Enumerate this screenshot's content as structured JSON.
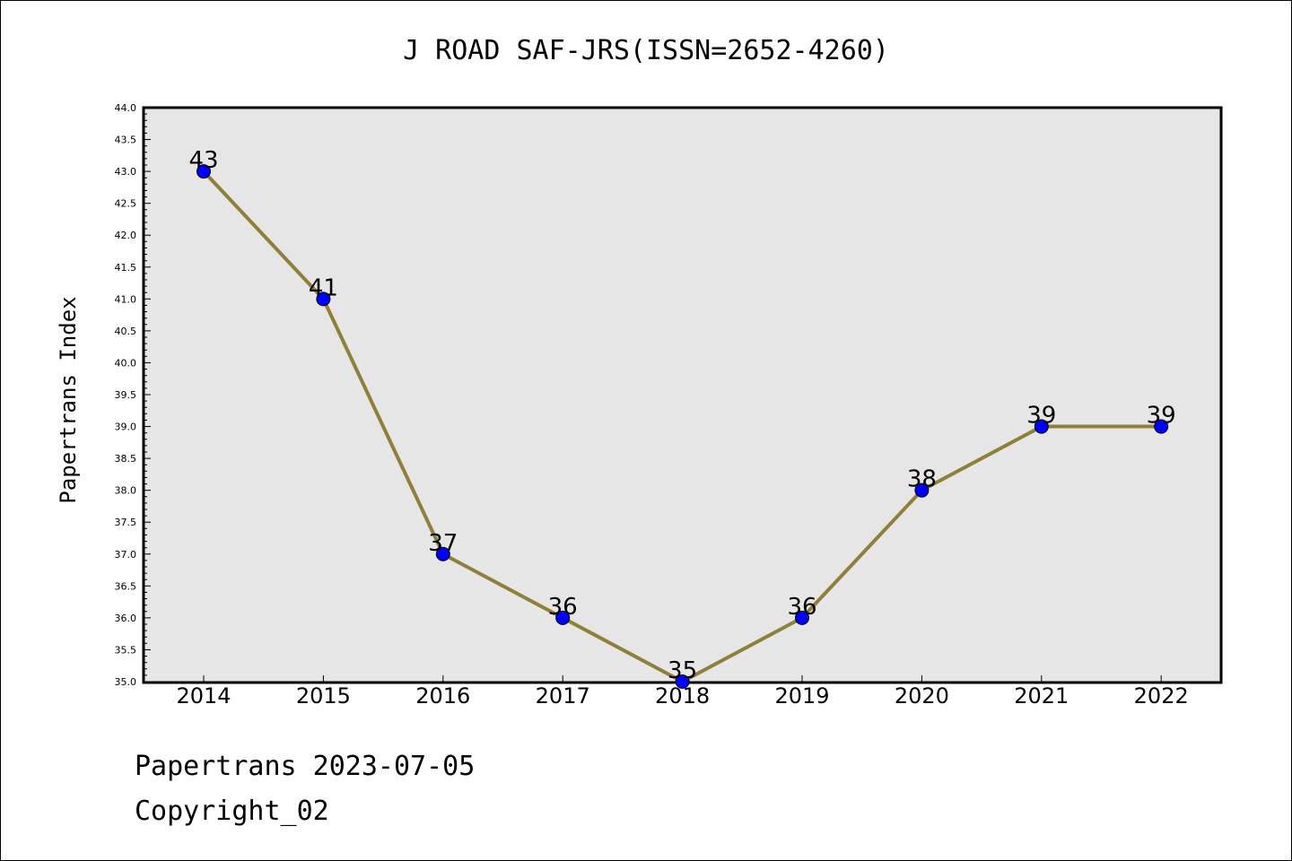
{
  "chart_data": {
    "type": "line",
    "title": "J ROAD SAF-JRS(ISSN=2652-4260)",
    "xlabel": "",
    "ylabel": "Papertrans Index",
    "categories": [
      "2014",
      "2015",
      "2016",
      "2017",
      "2018",
      "2019",
      "2020",
      "2021",
      "2022"
    ],
    "series": [
      {
        "values": [
          43,
          41,
          37,
          36,
          35,
          36,
          38,
          39,
          39
        ]
      }
    ],
    "data_labels": [
      "43",
      "41",
      "37",
      "36",
      "35",
      "36",
      "38",
      "39",
      "39"
    ],
    "ylim": [
      35.0,
      44.0
    ],
    "yticks": [
      "35.0",
      "35.5",
      "36.0",
      "36.5",
      "37.0",
      "37.5",
      "38.0",
      "38.5",
      "39.0",
      "39.5",
      "40.0",
      "40.5",
      "41.0",
      "41.5",
      "42.0",
      "42.5",
      "43.0",
      "43.5",
      "44.0"
    ],
    "grid": false,
    "colors": {
      "line": "#8f7f3a",
      "marker": "#0000ff",
      "plot_bg": "#e6e6e6"
    }
  },
  "footer": {
    "line1": "Papertrans 2023-07-05",
    "line2": "Copyright_02"
  }
}
